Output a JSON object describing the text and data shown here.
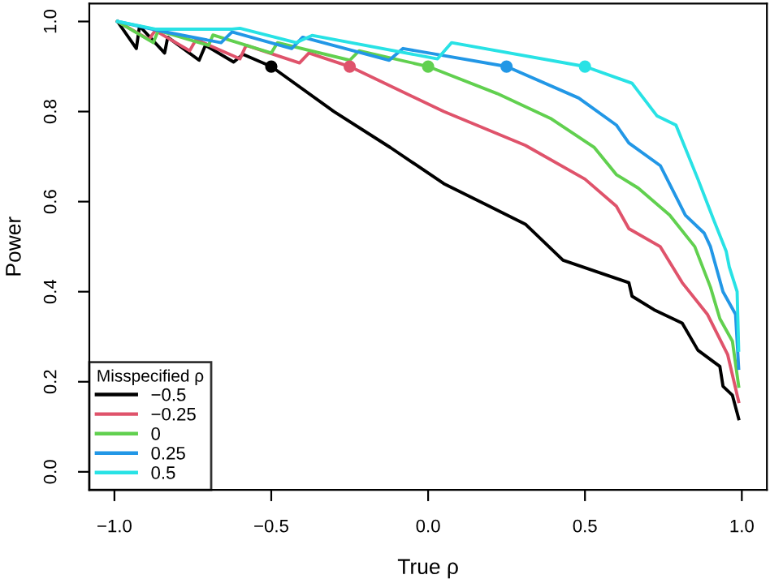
{
  "chart_data": {
    "type": "line",
    "xlabel": "True ρ",
    "ylabel": "Power",
    "legend_title": "Misspecified ρ",
    "legend": "bottom left",
    "grid": false,
    "line_style": "solid",
    "xlim": [
      -1.08,
      1.08
    ],
    "ylim": [
      -0.04,
      1.04
    ],
    "xticks": [
      {
        "value": -1.0,
        "label": "−1.0"
      },
      {
        "value": -0.5,
        "label": "−0.5"
      },
      {
        "value": 0,
        "label": "0.0"
      },
      {
        "value": 0.5,
        "label": "0.5"
      },
      {
        "value": 1.0,
        "label": "1.0"
      }
    ],
    "yticks": [
      {
        "value": 0,
        "label": "0.0"
      },
      {
        "value": 0.2,
        "label": "0.2"
      },
      {
        "value": 0.4,
        "label": "0.4"
      },
      {
        "value": 0.6,
        "label": "0.6"
      },
      {
        "value": 0.8,
        "label": "0.8"
      },
      {
        "value": 1.0,
        "label": "1.0"
      }
    ],
    "series": [
      {
        "name": "−0.5",
        "color": "#000000",
        "x": [
          -0.99,
          -0.93,
          -0.92,
          -0.84,
          -0.83,
          -0.73,
          -0.71,
          -0.62,
          -0.59,
          -0.5,
          -0.3,
          -0.12,
          0.05,
          0.31,
          0.43,
          0.64,
          0.65,
          0.72,
          0.81,
          0.86,
          0.93,
          0.94,
          0.97,
          0.99
        ],
        "values": [
          1.0,
          0.94,
          0.99,
          0.93,
          0.965,
          0.914,
          0.947,
          0.91,
          0.927,
          0.9,
          0.8,
          0.72,
          0.64,
          0.55,
          0.47,
          0.42,
          0.39,
          0.36,
          0.33,
          0.27,
          0.234,
          0.19,
          0.17,
          0.118
        ]
      },
      {
        "name": "−0.25",
        "color": "#df536b",
        "x": [
          -0.99,
          -0.89,
          -0.87,
          -0.76,
          -0.74,
          -0.6,
          -0.58,
          -0.41,
          -0.38,
          -0.25,
          0.05,
          0.31,
          0.5,
          0.6,
          0.64,
          0.74,
          0.81,
          0.89,
          0.955,
          0.99
        ],
        "values": [
          1.0,
          0.96,
          0.98,
          0.935,
          0.96,
          0.917,
          0.947,
          0.908,
          0.93,
          0.9,
          0.8,
          0.725,
          0.65,
          0.59,
          0.54,
          0.5,
          0.42,
          0.35,
          0.26,
          0.156
        ]
      },
      {
        "name": "0",
        "color": "#61d04f",
        "x": [
          -0.99,
          -0.876,
          -0.86,
          -0.7,
          -0.686,
          -0.5,
          -0.48,
          -0.25,
          -0.22,
          0.0,
          0.22,
          0.39,
          0.53,
          0.6,
          0.67,
          0.77,
          0.85,
          0.9,
          0.93,
          0.97,
          0.99
        ],
        "values": [
          1.0,
          0.953,
          0.98,
          0.947,
          0.97,
          0.93,
          0.953,
          0.914,
          0.935,
          0.9,
          0.84,
          0.785,
          0.72,
          0.66,
          0.63,
          0.57,
          0.5,
          0.41,
          0.34,
          0.29,
          0.19
        ]
      },
      {
        "name": "0.25",
        "color": "#2297e6",
        "x": [
          -0.99,
          -0.84,
          -0.66,
          -0.625,
          -0.435,
          -0.4,
          -0.124,
          -0.08,
          0.25,
          0.48,
          0.6,
          0.64,
          0.74,
          0.82,
          0.88,
          0.9,
          0.94,
          0.98,
          0.99
        ],
        "values": [
          1.0,
          0.977,
          0.953,
          0.977,
          0.94,
          0.965,
          0.914,
          0.94,
          0.9,
          0.83,
          0.77,
          0.73,
          0.68,
          0.57,
          0.53,
          0.5,
          0.4,
          0.35,
          0.23
        ]
      },
      {
        "name": "0.5",
        "color": "#28e2e5",
        "x": [
          -0.99,
          -0.87,
          -0.625,
          -0.6,
          -0.42,
          -0.37,
          0.03,
          0.075,
          0.5,
          0.65,
          0.73,
          0.79,
          0.86,
          0.91,
          0.95,
          0.96,
          0.985,
          0.99
        ],
        "values": [
          1.0,
          0.983,
          0.983,
          0.985,
          0.953,
          0.969,
          0.917,
          0.953,
          0.9,
          0.863,
          0.79,
          0.77,
          0.65,
          0.56,
          0.49,
          0.455,
          0.4,
          0.27
        ]
      },
      {
        "type": "scatter",
        "marker": "circle",
        "color": "#000000",
        "x": [
          -0.5
        ],
        "values": [
          0.9
        ]
      },
      {
        "type": "scatter",
        "marker": "circle",
        "color": "#df536b",
        "x": [
          -0.25
        ],
        "values": [
          0.9
        ]
      },
      {
        "type": "scatter",
        "marker": "circle",
        "color": "#61d04f",
        "x": [
          0.0
        ],
        "values": [
          0.9
        ]
      },
      {
        "type": "scatter",
        "marker": "circle",
        "color": "#2297e6",
        "x": [
          0.25
        ],
        "values": [
          0.9
        ]
      },
      {
        "type": "scatter",
        "marker": "circle",
        "color": "#28e2e5",
        "x": [
          0.5
        ],
        "values": [
          0.9
        ]
      }
    ]
  }
}
